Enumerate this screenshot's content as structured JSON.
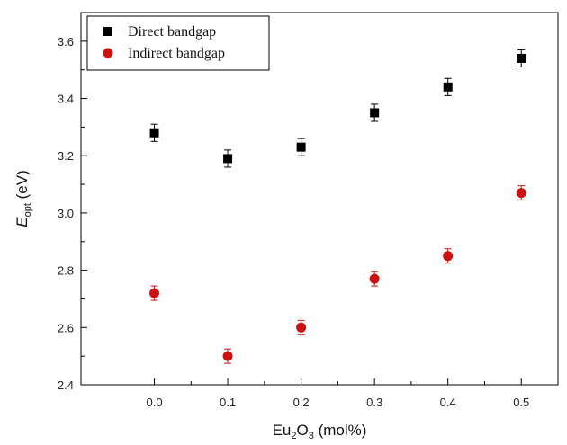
{
  "chart_data": {
    "type": "scatter",
    "title": "",
    "xlabel": {
      "main": "Eu",
      "sub1": "2",
      "mid": "O",
      "sub2": "3",
      "rest": " (mol%)"
    },
    "ylabel": {
      "main": "E",
      "sub": "opt",
      "rest": " (eV)"
    },
    "xlim": [
      -0.1,
      0.55
    ],
    "ylim": [
      2.4,
      3.7
    ],
    "xticks": [
      0.0,
      0.1,
      0.2,
      0.3,
      0.4,
      0.5
    ],
    "xtick_labels": [
      "0.0",
      "0.1",
      "0.2",
      "0.3",
      "0.4",
      "0.5"
    ],
    "yticks": [
      2.4,
      2.6,
      2.8,
      3.0,
      3.2,
      3.4,
      3.6
    ],
    "ytick_labels": [
      "2.4",
      "2.6",
      "2.8",
      "3.0",
      "3.2",
      "3.4",
      "3.6"
    ],
    "grid": false,
    "legend_position": "top-left",
    "series": [
      {
        "name": "Direct bandgap",
        "marker": "square",
        "color": "#000000",
        "x": [
          0.0,
          0.1,
          0.2,
          0.3,
          0.4,
          0.5
        ],
        "y": [
          3.28,
          3.19,
          3.23,
          3.35,
          3.44,
          3.54
        ],
        "error": [
          0.03,
          0.03,
          0.03,
          0.03,
          0.03,
          0.03
        ]
      },
      {
        "name": "Indirect bandgap",
        "marker": "circle",
        "color": "#cc1111",
        "x": [
          0.0,
          0.1,
          0.2,
          0.3,
          0.4,
          0.5
        ],
        "y": [
          2.72,
          2.5,
          2.6,
          2.77,
          2.85,
          3.07
        ],
        "error": [
          0.025,
          0.025,
          0.025,
          0.025,
          0.025,
          0.025
        ]
      }
    ]
  }
}
